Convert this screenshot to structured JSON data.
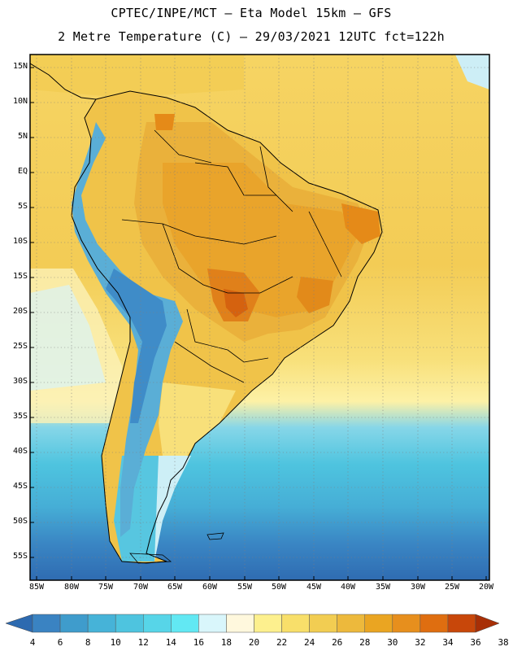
{
  "title_line1": "CPTEC/INPE/MCT –  Eta Model 15km – GFS",
  "title_line2": "2 Metre Temperature (C) – 29/03/2021 12UTC fct=122h",
  "lat_labels": [
    "15N",
    "10N",
    "5N",
    "EQ",
    "5S",
    "10S",
    "15S",
    "20S",
    "25S",
    "30S",
    "35S",
    "40S",
    "45S",
    "50S",
    "55S"
  ],
  "lon_labels": [
    "85W",
    "80W",
    "75W",
    "70W",
    "65W",
    "60W",
    "55W",
    "50W",
    "45W",
    "40W",
    "35W",
    "30W",
    "25W",
    "20W"
  ],
  "colorbar": {
    "labels": [
      "4",
      "6",
      "8",
      "10",
      "12",
      "14",
      "16",
      "18",
      "20",
      "22",
      "24",
      "26",
      "28",
      "30",
      "32",
      "34",
      "36",
      "38"
    ],
    "colors": [
      "#2d6ab0",
      "#3a83c2",
      "#3f9ccc",
      "#46b3d8",
      "#4ec4df",
      "#57d5e8",
      "#62e8f3",
      "#d9f6fb",
      "#fff8dd",
      "#fdf08e",
      "#f8df6a",
      "#f2cd52",
      "#edb93c",
      "#eaa522",
      "#e78f1d",
      "#df6e10",
      "#c8470a",
      "#a82f06"
    ]
  },
  "colors": {
    "ocean_south": "#3a7bbd",
    "ocean_mid": "#4fbfdb",
    "ocean_warm": "#f5d662",
    "land_warm": "#edb93c",
    "land_hot": "#e78f1d",
    "andes_cold": "#4fa6d3"
  }
}
